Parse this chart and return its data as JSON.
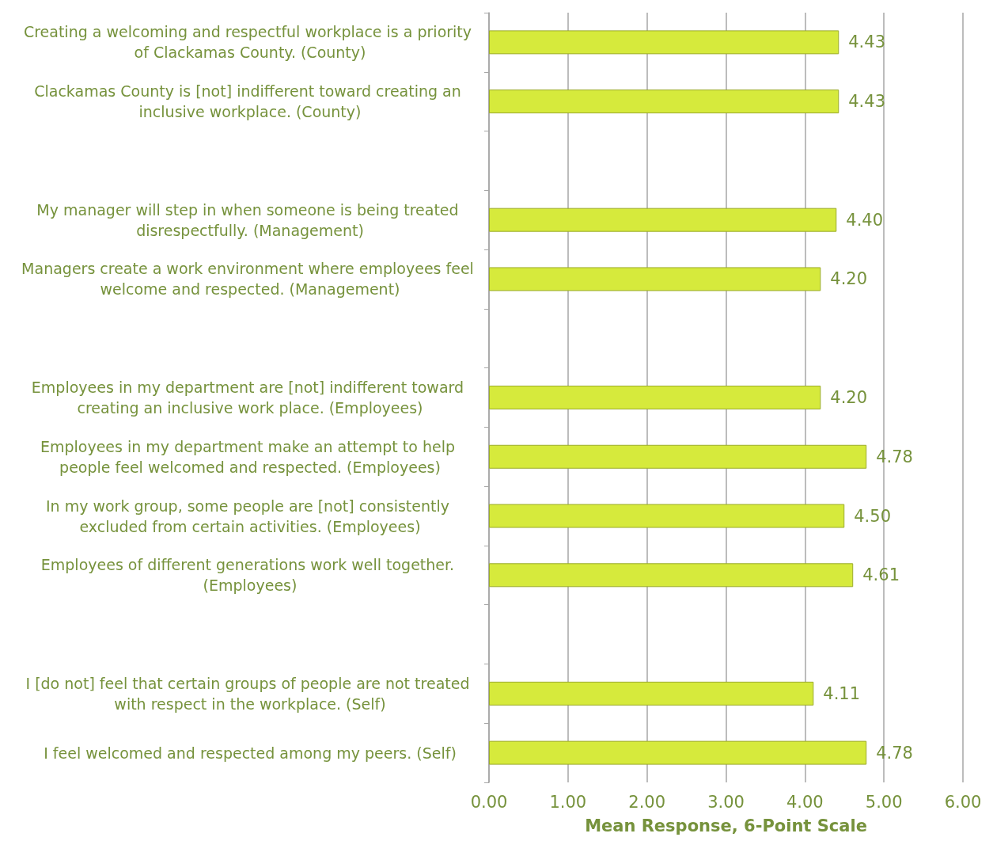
{
  "chart_data": {
    "type": "bar",
    "orientation": "horizontal",
    "xlabel": "Mean Response, 6-Point Scale",
    "categories": [
      "Creating a welcoming and respectful workplace is a priority of Clackamas County. (County)",
      "Clackamas County is [not] indifferent toward creating an inclusive workplace. (County)",
      null,
      "My manager will step in when someone is being treated disrespectfully. (Management)",
      "Managers create a work environment where employees feel welcome and respected. (Management)",
      null,
      "Employees in my department are [not] indifferent toward creating an inclusive work place. (Employees)",
      "Employees in my department make an attempt to help people feel welcomed and respected. (Employees)",
      "In my work group, some people are [not] consistently excluded from certain activities. (Employees)",
      "Employees of different generations work well together. (Employees)",
      null,
      "I [do not] feel that certain groups of people are not treated with respect in the workplace. (Self)",
      "I feel welcomed and respected among my peers. (Self)"
    ],
    "values": [
      4.43,
      4.43,
      null,
      4.4,
      4.2,
      null,
      4.2,
      4.78,
      4.5,
      4.61,
      null,
      4.11,
      4.78
    ],
    "value_labels": [
      "4.43",
      "4.43",
      null,
      "4.40",
      "4.20",
      null,
      "4.20",
      "4.78",
      "4.50",
      "4.61",
      null,
      "4.11",
      "4.78"
    ],
    "color": "#d6ea3c",
    "xlim": [
      0,
      6
    ],
    "xticks": [
      {
        "value": 0,
        "label": "0.00"
      },
      {
        "value": 1,
        "label": "1.00"
      },
      {
        "value": 2,
        "label": "2.00"
      },
      {
        "value": 3,
        "label": "3.00"
      },
      {
        "value": 4,
        "label": "4.00"
      },
      {
        "value": 5,
        "label": "5.00"
      },
      {
        "value": 6,
        "label": "6.00"
      }
    ],
    "grid": "x"
  }
}
